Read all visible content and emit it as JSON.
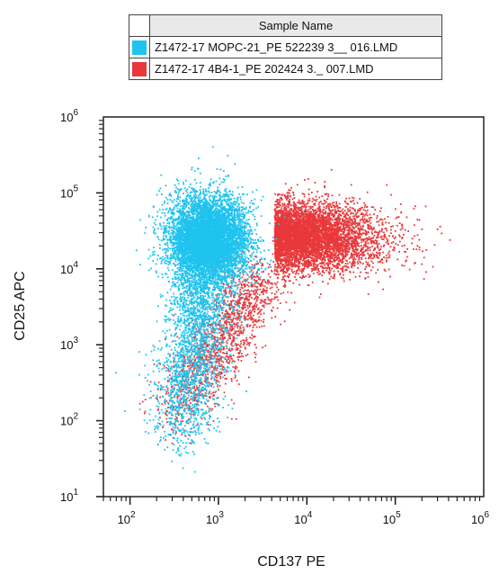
{
  "legend": {
    "header": "Sample Name",
    "entries": [
      {
        "label": "Z1472-17 MOPC-21_PE 522239 3__ 016.LMD",
        "color": "#1ec3ee"
      },
      {
        "label": "Z1472-17 4B4-1_PE 202424 3._ 007.LMD",
        "color": "#e8383b"
      }
    ]
  },
  "chart_data": {
    "type": "scatter",
    "title": "",
    "xlabel": "CD137 PE",
    "ylabel": "CD25 APC",
    "xscale": "log",
    "yscale": "log",
    "xlim": [
      50,
      1000000
    ],
    "ylim": [
      10,
      1000000
    ],
    "x_ticks": [
      {
        "base": "10",
        "exp": "2",
        "value": 100
      },
      {
        "base": "10",
        "exp": "3",
        "value": 1000
      },
      {
        "base": "10",
        "exp": "4",
        "value": 10000
      },
      {
        "base": "10",
        "exp": "5",
        "value": 100000
      },
      {
        "base": "10",
        "exp": "6",
        "value": 1000000
      }
    ],
    "y_ticks": [
      {
        "base": "10",
        "exp": "1",
        "value": 10
      },
      {
        "base": "10",
        "exp": "2",
        "value": 100
      },
      {
        "base": "10",
        "exp": "3",
        "value": 1000
      },
      {
        "base": "10",
        "exp": "4",
        "value": 10000
      },
      {
        "base": "10",
        "exp": "5",
        "value": 100000
      },
      {
        "base": "10",
        "exp": "6",
        "value": 1000000
      }
    ],
    "grid": false,
    "series": [
      {
        "name": "Z1472-17 4B4-1_PE 202424 3._ 007.LMD",
        "color": "#e8383b",
        "population": {
          "center_x": 6000,
          "center_y": 28000,
          "spread_log_x": 0.45,
          "spread_log_y": 0.22,
          "approx_events": 5500
        },
        "tail": {
          "from_x": 300,
          "from_y": 120,
          "to_x": 3000,
          "to_y": 8000,
          "approx_events": 1500
        }
      },
      {
        "name": "Z1472-17 MOPC-21_PE 522239 3__ 016.LMD",
        "color": "#1ec3ee",
        "population": {
          "center_x": 750,
          "center_y": 25000,
          "spread_log_x": 0.22,
          "spread_log_y": 0.28,
          "approx_events": 7000
        },
        "tail": {
          "from_x": 350,
          "from_y": 60,
          "to_x": 700,
          "to_y": 8000,
          "approx_events": 2000
        }
      }
    ]
  }
}
